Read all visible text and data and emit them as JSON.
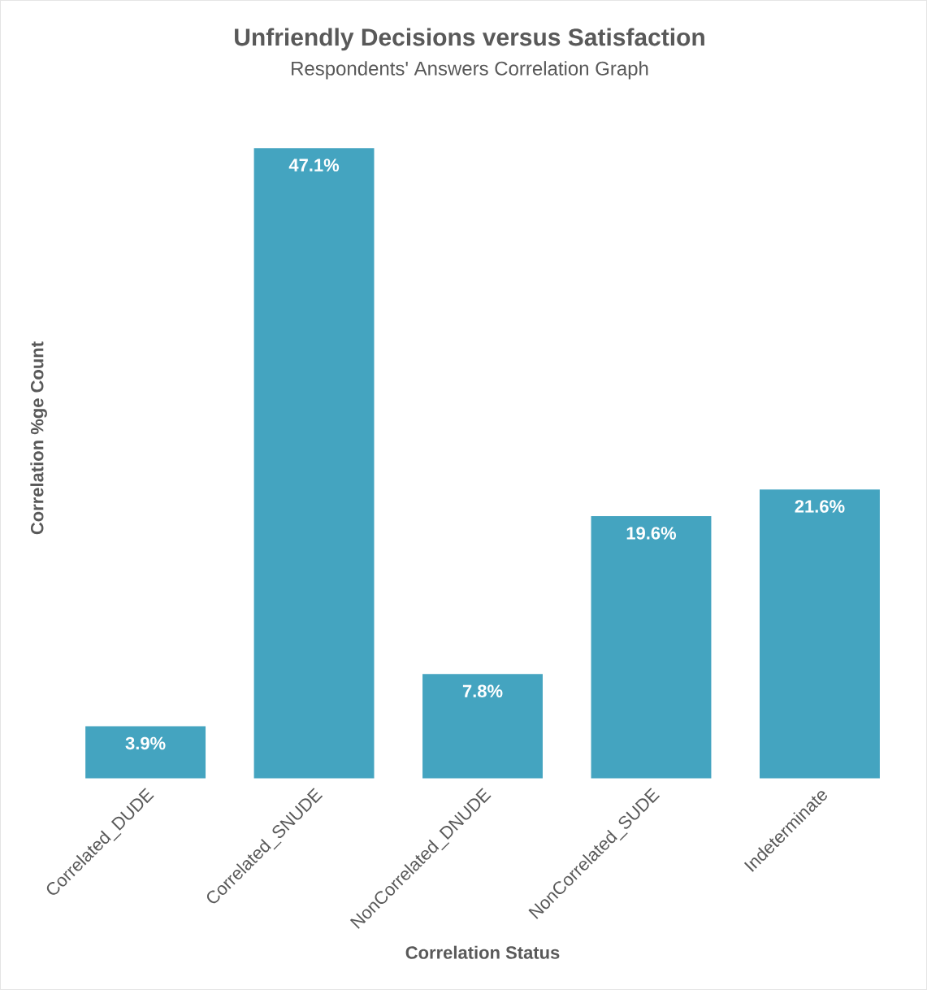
{
  "chart_data": {
    "type": "bar",
    "title": "Unfriendly Decisions versus Satisfaction",
    "subtitle": "Respondents' Answers Correlation Graph",
    "xlabel": "Correlation Status",
    "ylabel": "Correlation %ge Count",
    "categories": [
      "Correlated_DUDE",
      "Correlated_SNUDE",
      "NonCorrelated_DNUDE",
      "NonCorrelated_SUDE",
      "Indeterminate"
    ],
    "values": [
      3.9,
      47.1,
      7.8,
      19.6,
      21.6
    ],
    "value_labels": [
      "3.9%",
      "47.1%",
      "7.8%",
      "19.6%",
      "21.6%"
    ],
    "color": "#44a4c0"
  }
}
